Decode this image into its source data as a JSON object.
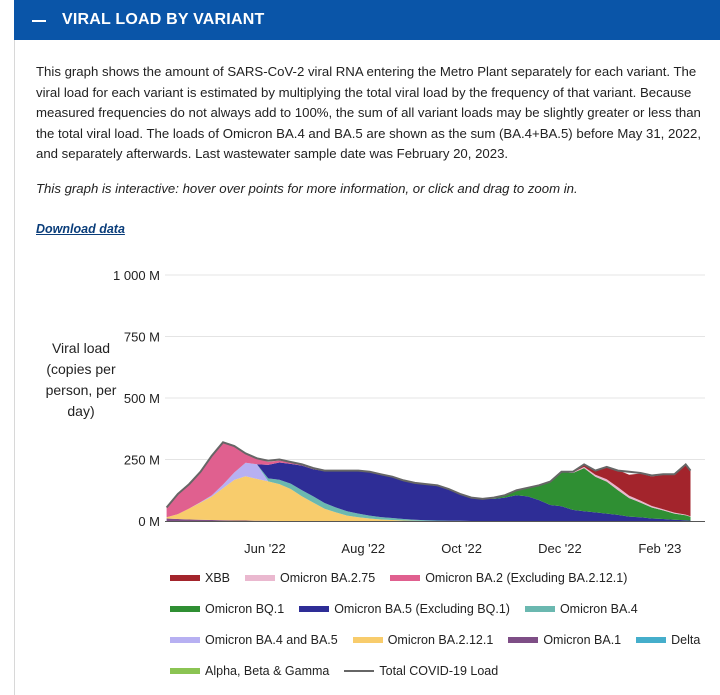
{
  "header": {
    "title": "VIRAL LOAD BY VARIANT",
    "icon": "minus-icon"
  },
  "description": "This graph shows the amount of SARS-CoV-2 viral RNA entering the Metro Plant separately for each variant. The viral load for each variant is estimated by multiplying the total viral load by the frequency of that variant. Because measured frequencies do not always add to 100%, the sum of all variant loads may be slightly greater or less than the total viral load. The loads of Omicron BA.4 and BA.5 are shown as the sum (BA.4+BA.5) before May 31, 2022, and separately afterwards. Last wastewater sample date was February 20, 2023.",
  "note": "This graph is interactive: hover over points for more information, or click and drag to zoom in.",
  "download_label": "Download data",
  "colors": {
    "header": "#0a55a8",
    "XBB": "#a3242c",
    "Omicron BA.2.75": "#eab8cf",
    "Omicron BA.2 (Excluding BA.2.12.1)": "#e0608f",
    "Omicron BQ.1": "#2f8f33",
    "Omicron BA.5 (Excluding BQ.1)": "#2e2d96",
    "Omicron BA.4": "#6bb8b0",
    "Omicron BA.4 and BA.5": "#b7b0f2",
    "Omicron BA.2.12.1": "#f8cc6c",
    "Omicron BA.1": "#7e4e86",
    "Delta": "#45aecb",
    "Alpha, Beta & Gamma": "#8bc453",
    "Total COVID-19 Load": "#666666"
  },
  "chart_data": {
    "type": "area",
    "stacked": true,
    "title": "",
    "xlabel": "",
    "ylabel": "Viral load (copies per person, per day)",
    "y_ticks": [
      {
        "value": 0,
        "label": "0 M"
      },
      {
        "value": 250,
        "label": "250 M"
      },
      {
        "value": 500,
        "label": "500 M"
      },
      {
        "value": 750,
        "label": "750 M"
      },
      {
        "value": 1000,
        "label": "1 000 M"
      }
    ],
    "ylim": [
      0,
      1000
    ],
    "x_ticks": [
      {
        "value": "2022-06-01",
        "label": "Jun '22"
      },
      {
        "value": "2022-08-01",
        "label": "Aug '22"
      },
      {
        "value": "2022-10-01",
        "label": "Oct '22"
      },
      {
        "value": "2022-12-01",
        "label": "Dec '22"
      },
      {
        "value": "2023-02-01",
        "label": "Feb '23"
      }
    ],
    "xlim": [
      "2022-03-31",
      "2023-03-01"
    ],
    "grid": true,
    "legend_position": "bottom",
    "x": [
      "2022-04-01",
      "2022-04-08",
      "2022-04-15",
      "2022-04-22",
      "2022-04-29",
      "2022-05-06",
      "2022-05-13",
      "2022-05-20",
      "2022-05-27",
      "2022-06-03",
      "2022-06-10",
      "2022-06-17",
      "2022-06-24",
      "2022-07-01",
      "2022-07-08",
      "2022-07-15",
      "2022-07-22",
      "2022-07-29",
      "2022-08-05",
      "2022-08-12",
      "2022-08-19",
      "2022-08-26",
      "2022-09-02",
      "2022-09-09",
      "2022-09-16",
      "2022-09-23",
      "2022-09-30",
      "2022-10-07",
      "2022-10-14",
      "2022-10-21",
      "2022-10-28",
      "2022-11-04",
      "2022-11-11",
      "2022-11-18",
      "2022-11-25",
      "2022-12-02",
      "2022-12-09",
      "2022-12-16",
      "2022-12-23",
      "2022-12-30",
      "2023-01-06",
      "2023-01-13",
      "2023-01-20",
      "2023-01-27",
      "2023-02-03",
      "2023-02-10",
      "2023-02-17",
      "2023-02-20"
    ],
    "series": [
      {
        "name": "Alpha, Beta & Gamma",
        "values": [
          0,
          0,
          0,
          0,
          0,
          0,
          0,
          0,
          0,
          0,
          0,
          0,
          0,
          0,
          0,
          0,
          0,
          0,
          0,
          0,
          0,
          0,
          0,
          0,
          0,
          0,
          0,
          0,
          0,
          0,
          0,
          0,
          0,
          0,
          0,
          0,
          0,
          0,
          0,
          0,
          0,
          0,
          0,
          0,
          0,
          0,
          0,
          0
        ]
      },
      {
        "name": "Delta",
        "values": [
          0,
          0,
          0,
          0,
          0,
          0,
          0,
          0,
          0,
          0,
          0,
          0,
          0,
          0,
          0,
          0,
          0,
          0,
          0,
          0,
          0,
          0,
          0,
          0,
          0,
          0,
          0,
          0,
          0,
          0,
          0,
          0,
          0,
          0,
          0,
          0,
          0,
          0,
          0,
          0,
          0,
          0,
          0,
          0,
          0,
          0,
          0,
          0
        ]
      },
      {
        "name": "Omicron BA.1",
        "values": [
          10,
          8,
          6,
          5,
          4,
          3,
          2,
          2,
          1,
          1,
          0,
          0,
          0,
          0,
          0,
          0,
          0,
          0,
          0,
          0,
          0,
          0,
          0,
          0,
          0,
          0,
          0,
          0,
          0,
          0,
          0,
          0,
          0,
          0,
          0,
          0,
          0,
          0,
          0,
          0,
          0,
          0,
          0,
          0,
          0,
          0,
          0,
          0
        ]
      },
      {
        "name": "Omicron BA.2.12.1",
        "values": [
          5,
          20,
          45,
          70,
          95,
          130,
          165,
          180,
          170,
          160,
          150,
          130,
          100,
          75,
          50,
          35,
          22,
          15,
          10,
          6,
          4,
          2,
          1,
          0,
          0,
          0,
          0,
          0,
          0,
          0,
          0,
          0,
          0,
          0,
          0,
          0,
          0,
          0,
          0,
          0,
          0,
          0,
          0,
          0,
          0,
          0,
          0,
          0
        ]
      },
      {
        "name": "Omicron BA.4 and BA.5",
        "values": [
          0,
          0,
          0,
          2,
          5,
          15,
          30,
          55,
          60,
          0,
          0,
          0,
          0,
          0,
          0,
          0,
          0,
          0,
          0,
          0,
          0,
          0,
          0,
          0,
          0,
          0,
          0,
          0,
          0,
          0,
          0,
          0,
          0,
          0,
          0,
          0,
          0,
          0,
          0,
          0,
          0,
          0,
          0,
          0,
          0,
          0,
          0,
          0
        ]
      },
      {
        "name": "Omicron BA.4",
        "values": [
          0,
          0,
          0,
          0,
          0,
          0,
          0,
          0,
          0,
          12,
          18,
          22,
          25,
          25,
          23,
          20,
          18,
          15,
          12,
          10,
          8,
          6,
          4,
          3,
          2,
          1,
          1,
          0,
          0,
          0,
          0,
          0,
          0,
          0,
          0,
          0,
          0,
          0,
          0,
          0,
          0,
          0,
          0,
          0,
          0,
          0,
          0,
          0
        ]
      },
      {
        "name": "Omicron BA.5 (Excluding BQ.1)",
        "values": [
          0,
          0,
          0,
          0,
          0,
          0,
          0,
          0,
          0,
          55,
          70,
          80,
          100,
          110,
          130,
          150,
          165,
          175,
          180,
          175,
          170,
          160,
          150,
          145,
          140,
          130,
          110,
          95,
          90,
          90,
          95,
          105,
          100,
          85,
          65,
          60,
          45,
          40,
          35,
          30,
          25,
          18,
          15,
          10,
          8,
          5,
          3,
          2
        ]
      },
      {
        "name": "Omicron BQ.1",
        "values": [
          0,
          0,
          0,
          0,
          0,
          0,
          0,
          0,
          0,
          0,
          0,
          0,
          0,
          0,
          0,
          0,
          0,
          0,
          0,
          0,
          0,
          0,
          0,
          0,
          0,
          0,
          0,
          0,
          0,
          5,
          10,
          20,
          35,
          60,
          95,
          140,
          150,
          175,
          145,
          130,
          100,
          75,
          60,
          45,
          35,
          25,
          20,
          15
        ]
      },
      {
        "name": "Omicron BA.2 (Excluding BA.2.12.1)",
        "values": [
          40,
          80,
          95,
          120,
          160,
          170,
          105,
          35,
          25,
          12,
          8,
          5,
          3,
          2,
          1,
          0,
          0,
          0,
          0,
          0,
          0,
          0,
          0,
          0,
          0,
          0,
          0,
          0,
          0,
          0,
          0,
          0,
          0,
          0,
          0,
          0,
          0,
          0,
          0,
          0,
          0,
          0,
          0,
          0,
          0,
          0,
          0,
          0
        ]
      },
      {
        "name": "Omicron BA.2.75",
        "values": [
          0,
          0,
          0,
          0,
          0,
          0,
          0,
          0,
          0,
          0,
          0,
          0,
          0,
          0,
          0,
          0,
          0,
          0,
          0,
          0,
          0,
          0,
          0,
          0,
          0,
          0,
          0,
          0,
          0,
          0,
          0,
          0,
          0,
          0,
          0,
          0,
          2,
          5,
          8,
          10,
          12,
          10,
          8,
          6,
          5,
          4,
          3,
          2
        ]
      },
      {
        "name": "XBB",
        "values": [
          0,
          0,
          0,
          0,
          0,
          0,
          0,
          0,
          0,
          0,
          0,
          0,
          0,
          0,
          0,
          0,
          0,
          0,
          0,
          0,
          0,
          0,
          0,
          0,
          0,
          0,
          0,
          0,
          0,
          0,
          0,
          0,
          0,
          0,
          0,
          0,
          5,
          10,
          20,
          50,
          70,
          85,
          110,
          120,
          140,
          155,
          200,
          185
        ]
      }
    ],
    "total": {
      "name": "Total COVID-19 Load",
      "values": [
        55,
        110,
        150,
        200,
        265,
        320,
        305,
        275,
        255,
        245,
        250,
        240,
        230,
        215,
        205,
        205,
        205,
        205,
        200,
        190,
        180,
        165,
        155,
        150,
        145,
        130,
        110,
        95,
        90,
        95,
        105,
        125,
        135,
        145,
        160,
        200,
        200,
        230,
        205,
        220,
        205,
        200,
        195,
        185,
        190,
        190,
        230,
        205
      ]
    }
  },
  "legend": [
    [
      {
        "label": "XBB",
        "key": "XBB",
        "kind": "area"
      },
      {
        "label": "Omicron BA.2.75",
        "key": "Omicron BA.2.75",
        "kind": "area"
      },
      {
        "label": "Omicron BA.2 (Excluding BA.2.12.1)",
        "key": "Omicron BA.2 (Excluding BA.2.12.1)",
        "kind": "area"
      }
    ],
    [
      {
        "label": "Omicron BQ.1",
        "key": "Omicron BQ.1",
        "kind": "area"
      },
      {
        "label": "Omicron BA.5 (Excluding BQ.1)",
        "key": "Omicron BA.5 (Excluding BQ.1)",
        "kind": "area"
      },
      {
        "label": "Omicron BA.4",
        "key": "Omicron BA.4",
        "kind": "area"
      }
    ],
    [
      {
        "label": "Omicron BA.4 and BA.5",
        "key": "Omicron BA.4 and BA.5",
        "kind": "area"
      },
      {
        "label": "Omicron BA.2.12.1",
        "key": "Omicron BA.2.12.1",
        "kind": "area"
      },
      {
        "label": "Omicron BA.1",
        "key": "Omicron BA.1",
        "kind": "area"
      },
      {
        "label": "Delta",
        "key": "Delta",
        "kind": "area"
      }
    ],
    [
      {
        "label": "Alpha, Beta & Gamma",
        "key": "Alpha, Beta & Gamma",
        "kind": "area"
      },
      {
        "label": "Total COVID-19 Load",
        "key": "Total COVID-19 Load",
        "kind": "line"
      }
    ]
  ]
}
